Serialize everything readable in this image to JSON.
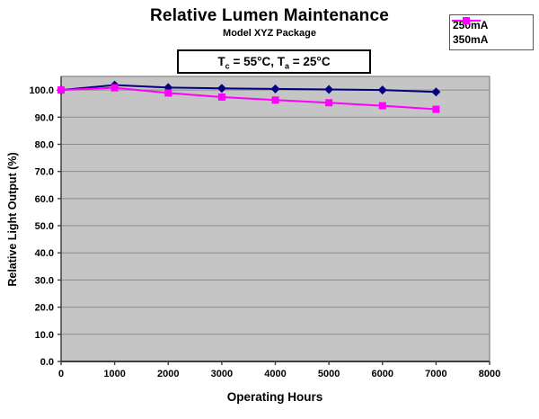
{
  "chart_data": {
    "type": "line",
    "title": "Relative Lumen Maintenance",
    "subtitle": "Model XYZ Package",
    "annotation": "Tc = 55°C, Ta = 25°C",
    "xlabel": "Operating Hours",
    "ylabel": "Relative Light Output (%)",
    "xlim": [
      0,
      8000
    ],
    "ylim": [
      0,
      105
    ],
    "grid": true,
    "legend_position": "top-right",
    "plot_bg": "#c5c5c5",
    "plot_border": "#808080",
    "gridline_color": "#8c8c8c",
    "axis_color": "#3f3f3f",
    "x": [
      0,
      1000,
      2000,
      3000,
      4000,
      5000,
      6000,
      7000
    ],
    "series": [
      {
        "name": "250mA",
        "color": "#000080",
        "marker": "diamond",
        "values": [
          100.0,
          101.8,
          100.9,
          100.6,
          100.4,
          100.2,
          100.0,
          99.3
        ]
      },
      {
        "name": "350mA",
        "color": "#ff00ff",
        "marker": "square",
        "values": [
          100.0,
          100.8,
          98.9,
          97.4,
          96.3,
          95.3,
          94.2,
          92.9
        ]
      }
    ],
    "x_ticks": {
      "values": [
        0,
        1000,
        2000,
        3000,
        4000,
        5000,
        6000,
        7000,
        8000
      ],
      "labels": [
        "0",
        "1000",
        "2000",
        "3000",
        "4000",
        "5000",
        "6000",
        "7000",
        "8000"
      ]
    },
    "y_ticks": {
      "values": [
        0,
        10,
        20,
        30,
        40,
        50,
        60,
        70,
        80,
        90,
        100
      ],
      "labels": [
        "0.0",
        "10.0",
        "20.0",
        "30.0",
        "40.0",
        "50.0",
        "60.0",
        "70.0",
        "80.0",
        "90.0",
        "100.0"
      ]
    }
  },
  "condition_box": {
    "t1": "T",
    "sub1": "c",
    "t2": " = 55°C, T",
    "sub2": "a",
    "t3": " = 25°C"
  }
}
